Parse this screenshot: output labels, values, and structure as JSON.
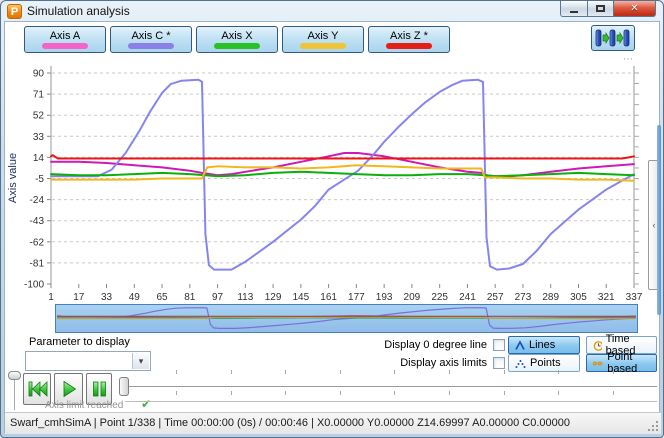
{
  "window": {
    "title": "Simulation analysis",
    "icon_letter": "P"
  },
  "icons": {
    "close": "✕",
    "dropdown": "▾",
    "collapse_left": "‹",
    "check": "✔",
    "ellipsis": "⋯"
  },
  "toolbar": {
    "axis_buttons": [
      {
        "label": "Axis A",
        "color": "#f464c8"
      },
      {
        "label": "Axis C *",
        "color": "#8a80e8"
      },
      {
        "label": "Axis X",
        "color": "#28c228"
      },
      {
        "label": "Axis Y",
        "color": "#f0c434"
      },
      {
        "label": "Axis Z *",
        "color": "#e42016"
      }
    ]
  },
  "chart_data": {
    "type": "line",
    "title": "",
    "xlabel": "",
    "ylabel": "Axis value",
    "xlim": [
      1,
      337
    ],
    "ylim": [
      -100,
      90
    ],
    "grid": "dashed-horizontal",
    "legend_position": "top-buttons",
    "x_ticks": [
      1,
      17,
      33,
      49,
      65,
      81,
      97,
      113,
      129,
      145,
      161,
      177,
      193,
      209,
      225,
      241,
      257,
      273,
      289,
      305,
      321,
      337
    ],
    "y_ticks": [
      90,
      71,
      52,
      33,
      14,
      -5,
      -24,
      -43,
      -62,
      -81,
      -100
    ],
    "series": [
      {
        "name": "Axis A",
        "color": "#d018b8",
        "overview_color": "#b05898",
        "points": [
          [
            1,
            10
          ],
          [
            9,
            10
          ],
          [
            17,
            10
          ],
          [
            33,
            9
          ],
          [
            49,
            7
          ],
          [
            65,
            5
          ],
          [
            81,
            2
          ],
          [
            88,
            0
          ],
          [
            97,
            -2
          ],
          [
            105,
            -1
          ],
          [
            113,
            1
          ],
          [
            129,
            5
          ],
          [
            145,
            10
          ],
          [
            161,
            15
          ],
          [
            170,
            18
          ],
          [
            178,
            18
          ],
          [
            193,
            15
          ],
          [
            209,
            10
          ],
          [
            225,
            5
          ],
          [
            241,
            1
          ],
          [
            249,
            0
          ],
          [
            252,
            -2
          ],
          [
            257,
            -3
          ],
          [
            265,
            -3
          ],
          [
            273,
            -2
          ],
          [
            289,
            1
          ],
          [
            305,
            4
          ],
          [
            321,
            6
          ],
          [
            337,
            8
          ]
        ]
      },
      {
        "name": "Axis C *",
        "color": "#8585f2",
        "overview_color": "#7a70d8",
        "points": [
          [
            1,
            -3
          ],
          [
            17,
            -3
          ],
          [
            28,
            -3
          ],
          [
            36,
            3
          ],
          [
            44,
            18
          ],
          [
            52,
            38
          ],
          [
            58,
            55
          ],
          [
            65,
            72
          ],
          [
            70,
            80
          ],
          [
            76,
            83
          ],
          [
            86,
            84
          ],
          [
            88,
            82
          ],
          [
            90,
            -55
          ],
          [
            92,
            -83
          ],
          [
            95,
            -87
          ],
          [
            105,
            -87
          ],
          [
            113,
            -80
          ],
          [
            121,
            -71
          ],
          [
            129,
            -62
          ],
          [
            137,
            -52
          ],
          [
            145,
            -42
          ],
          [
            153,
            -30
          ],
          [
            161,
            -15
          ],
          [
            169,
            -7
          ],
          [
            178,
            2
          ],
          [
            186,
            15
          ],
          [
            193,
            28
          ],
          [
            201,
            41
          ],
          [
            209,
            53
          ],
          [
            217,
            64
          ],
          [
            225,
            73
          ],
          [
            232,
            79
          ],
          [
            238,
            83
          ],
          [
            247,
            84
          ],
          [
            250,
            82
          ],
          [
            252,
            -58
          ],
          [
            254,
            -84
          ],
          [
            258,
            -87
          ],
          [
            265,
            -86
          ],
          [
            273,
            -82
          ],
          [
            281,
            -70
          ],
          [
            289,
            -55
          ],
          [
            297,
            -44
          ],
          [
            305,
            -33
          ],
          [
            313,
            -24
          ],
          [
            321,
            -15
          ],
          [
            329,
            -8
          ],
          [
            337,
            -1
          ]
        ]
      },
      {
        "name": "Axis X",
        "color": "#0ab00a",
        "overview_color": "#3aa060",
        "points": [
          [
            1,
            -1
          ],
          [
            17,
            -2
          ],
          [
            33,
            -2
          ],
          [
            49,
            -1
          ],
          [
            65,
            0
          ],
          [
            81,
            -1
          ],
          [
            90,
            -2
          ],
          [
            97,
            -3
          ],
          [
            113,
            -2
          ],
          [
            129,
            0
          ],
          [
            145,
            1
          ],
          [
            161,
            0
          ],
          [
            177,
            -1
          ],
          [
            193,
            -2
          ],
          [
            209,
            -2
          ],
          [
            225,
            -1
          ],
          [
            241,
            -1
          ],
          [
            251,
            -2
          ],
          [
            257,
            -3
          ],
          [
            273,
            -2
          ],
          [
            289,
            -1
          ],
          [
            305,
            0
          ],
          [
            321,
            -1
          ],
          [
            337,
            -2
          ]
        ]
      },
      {
        "name": "Axis Y",
        "color": "#f0b81e",
        "overview_color": "#b0a855",
        "points": [
          [
            1,
            -6
          ],
          [
            17,
            -6
          ],
          [
            33,
            -6
          ],
          [
            49,
            -6
          ],
          [
            65,
            -5
          ],
          [
            81,
            -5
          ],
          [
            88,
            -5
          ],
          [
            91,
            5
          ],
          [
            97,
            6
          ],
          [
            113,
            5
          ],
          [
            129,
            5
          ],
          [
            145,
            4
          ],
          [
            161,
            5
          ],
          [
            177,
            7
          ],
          [
            193,
            6
          ],
          [
            209,
            5
          ],
          [
            225,
            4
          ],
          [
            241,
            4
          ],
          [
            249,
            4
          ],
          [
            251,
            -4
          ],
          [
            257,
            -4
          ],
          [
            273,
            -5
          ],
          [
            289,
            -5
          ],
          [
            305,
            -6
          ],
          [
            321,
            -6
          ],
          [
            337,
            -7
          ]
        ]
      },
      {
        "name": "Axis Z *",
        "color": "#ea1515",
        "overview_color": "#a04848",
        "points": [
          [
            1,
            15
          ],
          [
            2,
            16
          ],
          [
            5,
            13
          ],
          [
            17,
            13
          ],
          [
            100,
            13
          ],
          [
            200,
            13
          ],
          [
            300,
            13
          ],
          [
            330,
            13
          ],
          [
            334,
            14
          ],
          [
            337,
            15
          ]
        ]
      }
    ]
  },
  "controls": {
    "parameter_label": "Parameter to display",
    "display_zero_label": "Display 0 degree line",
    "display_limits_label": "Display axis limits",
    "lines_label": "Lines",
    "points_label": "Points",
    "time_based_label": "Time based",
    "point_based_label": "Point based",
    "axis_limit_text": "Axis limit reached"
  },
  "status_bar": {
    "text": "Swarf_cmhSimA | Point 1/338 | Time 00:00:00 (0s) / 00:00:46 | X0.00000 Y0.00000 Z14.69997 A0.00000 C0.00000"
  }
}
